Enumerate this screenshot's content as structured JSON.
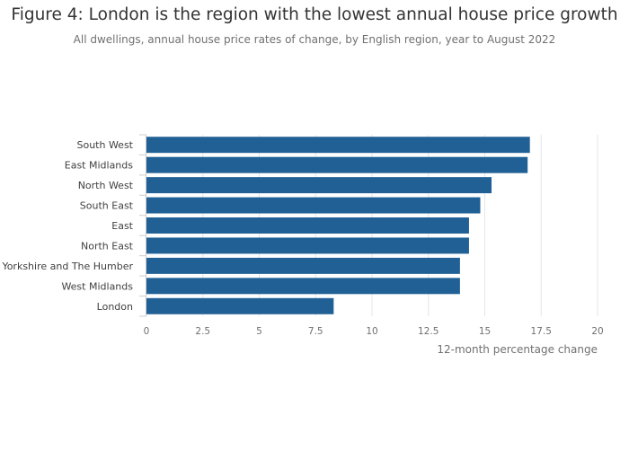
{
  "title": "Figure 4: London is the region with the lowest annual house price growth",
  "subtitle": "All dwellings, annual house price rates of change, by English region, year to August 2022",
  "colors": {
    "bar": "#206095",
    "grid": "#e6e6e6",
    "axis": "#cccccc"
  },
  "chart_data": {
    "type": "bar",
    "orientation": "horizontal",
    "categories": [
      "South West",
      "East Midlands",
      "North West",
      "South East",
      "East",
      "North East",
      "Yorkshire and The Humber",
      "West Midlands",
      "London"
    ],
    "values": [
      17.0,
      16.9,
      15.3,
      14.8,
      14.3,
      14.3,
      13.9,
      13.9,
      8.3
    ],
    "xlabel": "12-month percentage change",
    "ylabel": "",
    "xlim": [
      0,
      20
    ],
    "xticks": [
      "0",
      "2.5",
      "5",
      "7.5",
      "10",
      "12.5",
      "15",
      "17.5",
      "20"
    ],
    "grid": true,
    "legend": "none"
  }
}
